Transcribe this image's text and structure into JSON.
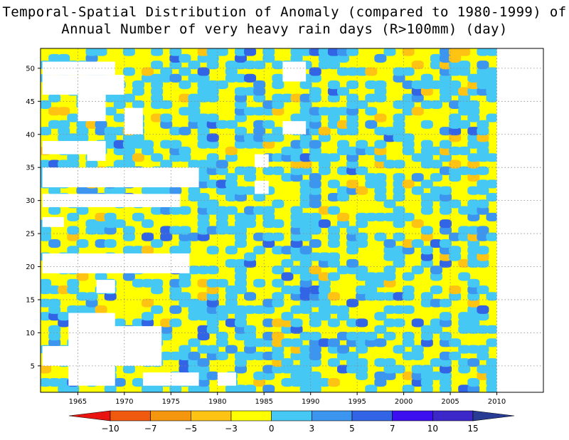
{
  "title": {
    "line1": "Temporal-Spatial Distribution of Anomaly (compared to 1980-1999) of",
    "line2": "Annual Number of very heavy rain days (R>100mm) (day)"
  },
  "chart_data": {
    "type": "heatmap",
    "xlabel": "",
    "ylabel": "",
    "xlim": [
      1961,
      2015
    ],
    "ylim": [
      1,
      53
    ],
    "x_ticks": [
      1965,
      1970,
      1975,
      1980,
      1985,
      1990,
      1995,
      2000,
      2005,
      2010
    ],
    "y_ticks": [
      5,
      10,
      15,
      20,
      25,
      30,
      35,
      40,
      45,
      50
    ],
    "grid": true,
    "data_end_year": 2010,
    "colorbar": {
      "orientation": "horizontal",
      "placement": "bottom",
      "labels": [
        "-10",
        "-7",
        "-5",
        "-3",
        "0",
        "3",
        "5",
        "7",
        "10",
        "15"
      ],
      "colors": [
        "#e8140f",
        "#f05a0f",
        "#f5960f",
        "#ffc314",
        "#ffff00",
        "#46c8f5",
        "#3c96f0",
        "#3264e6",
        "#3c0ff0",
        "#3c28c8",
        "#283c96"
      ]
    },
    "dominant_levels": [
      {
        "range": "-3 to 0",
        "color": "#ffff00"
      },
      {
        "range": "0 to 3",
        "color": "#46c8f5"
      },
      {
        "range": "3 to 5",
        "color": "#3c96f0"
      },
      {
        "range": "5 to 7",
        "color": "#3264e6"
      },
      {
        "range": "-5 to -3",
        "color": "#ffc314"
      }
    ]
  }
}
